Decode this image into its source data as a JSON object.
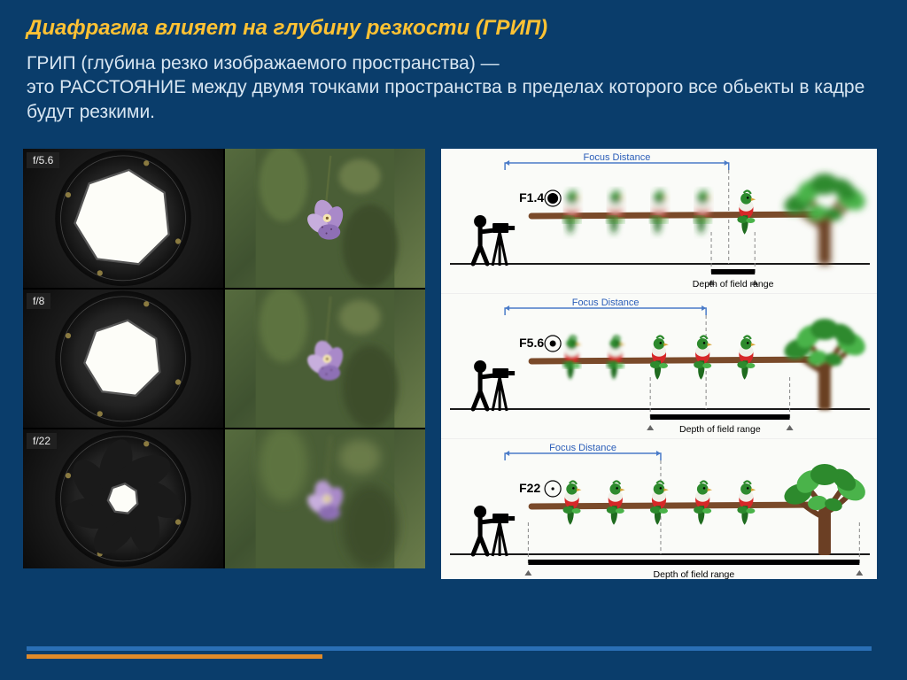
{
  "title": "Диафрагма влияет на глубину резкости (ГРИП)",
  "subtitle_line1": "ГРИП (глубина резко изображаемого пространства) —",
  "subtitle_line2": "это РАССТОЯНИЕ между двумя точками пространства в пределах которого все обьекты в кадре будут резкими.",
  "apertures": [
    {
      "label": "f/5.6",
      "opening": 70
    },
    {
      "label": "f/8",
      "opening": 56
    },
    {
      "label": "f/22",
      "opening": 22
    }
  ],
  "flower_blur": [
    0,
    1.2,
    3.5
  ],
  "dof": {
    "rows": [
      {
        "f": "F1.4",
        "range_start": 0.62,
        "range_end": 0.72,
        "blur_far": 4,
        "focus_label": "Focus Distance",
        "dof_label": "Depth of field range"
      },
      {
        "f": "F5.6",
        "range_start": 0.48,
        "range_end": 0.8,
        "blur_far": 2,
        "focus_label": "Focus Distance",
        "dof_label": "Depth of field range"
      },
      {
        "f": "F22",
        "range_start": 0.2,
        "range_end": 0.96,
        "blur_far": 0,
        "focus_label": "Focus Distance",
        "dof_label": "Depth of field range"
      }
    ],
    "birds_x": [
      0.3,
      0.4,
      0.5,
      0.6,
      0.7
    ],
    "tree_x": 0.88,
    "cam_x": 0.11
  },
  "colors": {
    "bg": "#0a3d6b",
    "title": "#ffc233",
    "text": "#d8e6f2",
    "focus_text": "#2a5db8",
    "branch": "#7a4a2a",
    "tree_trunk": "#6b3f24",
    "leaf1": "#2d8a2d",
    "leaf2": "#4ab34a",
    "bird_body": "#d62828",
    "bird_head": "#2d8a2d",
    "bird_tail": "#1f6b1f",
    "ground": "#1a1a1a",
    "dof_bar": "#000000",
    "arrow": "#4a7bc8"
  }
}
